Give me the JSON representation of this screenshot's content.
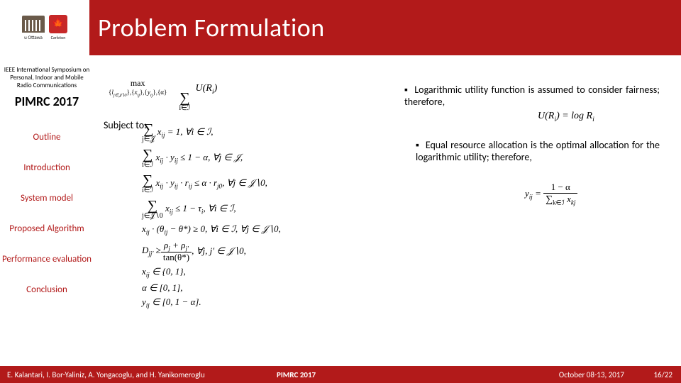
{
  "header": {
    "title": "Problem Formulation",
    "bg_color": "#b21a1a",
    "title_color": "#ffffff",
    "title_fontsize": 36,
    "logos": {
      "left_label": "u Ottawa",
      "right_label": "Carleton"
    }
  },
  "sidebar": {
    "conference_desc": "IEEE International Symposium on Personal, Indoor and Mobile Radio Communications",
    "conference_title": "PIMRC 2017",
    "items": [
      {
        "label": "Outline"
      },
      {
        "label": "Introduction"
      },
      {
        "label": "System model"
      },
      {
        "label": "Proposed Algorithm"
      },
      {
        "label": "Performance evaluation"
      },
      {
        "label": "Conclusion"
      }
    ],
    "item_color": "#b21a1a",
    "item_fontsize": 13
  },
  "main": {
    "objective": {
      "max_label": "max",
      "argvars": "{lⱼ∈𝒥∖0}, {xᵢⱼ}, {yᵢⱼ}, {α}",
      "sum_over": "i∈ℐ",
      "term": "U(Rᵢ)"
    },
    "subject_to_label": "Subject to:",
    "constraints": [
      "∑_{j∈𝒥} xᵢⱼ = 1, ∀i ∈ ℐ,",
      "∑_{i∈ℐ} xᵢⱼ · yᵢⱼ ≤ 1 − α, ∀j ∈ 𝒥,",
      "∑_{i∈ℐ} xᵢⱼ · yᵢⱼ · rᵢⱼ ≤ α · rⱼ₀, ∀j ∈ 𝒥∖0,",
      "∑_{j∈𝒥∖0} xᵢⱼ ≤ 1 − τᵢ, ∀i ∈ ℐ,",
      "xᵢⱼ · (θᵢⱼ − θ*) ≥ 0, ∀i ∈ ℐ, ∀j ∈ 𝒥∖0,",
      "Dⱼⱼ′ ≥ (ρⱼ + ρⱼ′) / tan(θ*), ∀j, j′ ∈ 𝒥∖0,",
      "xᵢⱼ ∈ {0, 1},",
      "α ∈ [0, 1],",
      "yᵢⱼ ∈ [0, 1 − α]."
    ],
    "bullets": [
      "Logarithmic utility function is assumed to consider fairness; therefore,",
      "Equal resource allocation is the optimal allocation for the logarithmic utility; therefore,"
    ],
    "utility_eq": "U(Rᵢ) = log Rᵢ",
    "yij_eq": {
      "lhs": "yᵢⱼ =",
      "num": "1 − α",
      "den": "∑_{k∈ℐ} xₖⱼ"
    }
  },
  "footer": {
    "authors": "E. Kalantari, I. Bor-Yaliniz, A. Yongacoglu, and H. Yanikomeroglu",
    "conference": "PIMRC 2017",
    "date": "October 08-13, 2017",
    "page": "16/22",
    "bg_color": "#b21a1a",
    "text_color": "#ffffff"
  }
}
